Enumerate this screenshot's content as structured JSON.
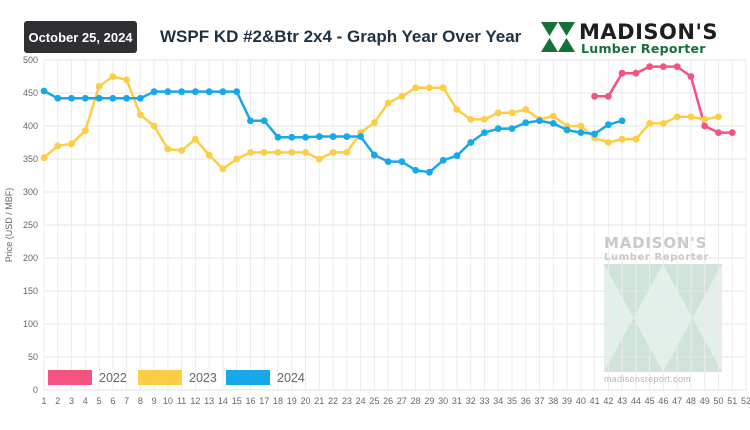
{
  "header": {
    "date_label": "October 25, 2024",
    "title": "WSPF KD #2&Btr 2x4 - Graph Year Over Year"
  },
  "logo": {
    "name": "MADISON'S",
    "sub": "Lumber Reporter",
    "icon": "madisons-logo-icon",
    "color": "#17703a"
  },
  "watermark": {
    "name": "MADISON'S",
    "sub": "Lumber Reporter",
    "url": "madisonsreport.com"
  },
  "chart_data": {
    "type": "line",
    "title": "WSPF KD #2&Btr 2x4 - Graph Year Over Year",
    "xlabel": "",
    "ylabel": "Price (USD / MBF)",
    "x": [
      1,
      2,
      3,
      4,
      5,
      6,
      7,
      8,
      9,
      10,
      11,
      12,
      13,
      14,
      15,
      16,
      17,
      18,
      19,
      20,
      21,
      22,
      23,
      24,
      25,
      26,
      27,
      28,
      29,
      30,
      31,
      32,
      33,
      34,
      35,
      36,
      37,
      38,
      39,
      40,
      41,
      42,
      43,
      44,
      45,
      46,
      47,
      48,
      49,
      50,
      51,
      52
    ],
    "xlim": [
      1,
      52
    ],
    "ylim": [
      0,
      500
    ],
    "yticks": [
      0,
      50,
      100,
      150,
      200,
      250,
      300,
      350,
      400,
      450,
      500
    ],
    "grid": true,
    "legend_position": "bottom-left",
    "series": [
      {
        "name": "2022",
        "color": "#f5537f",
        "points": [
          [
            41,
            445
          ],
          [
            42,
            445
          ],
          [
            43,
            480
          ],
          [
            44,
            480
          ],
          [
            45,
            490
          ],
          [
            46,
            490
          ],
          [
            47,
            490
          ],
          [
            48,
            475
          ],
          [
            49,
            400
          ],
          [
            50,
            390
          ],
          [
            51,
            390
          ]
        ]
      },
      {
        "name": "2023",
        "color": "#ffcd45",
        "points": [
          [
            1,
            352
          ],
          [
            2,
            370
          ],
          [
            3,
            373
          ],
          [
            4,
            393
          ],
          [
            5,
            460
          ],
          [
            6,
            475
          ],
          [
            7,
            470
          ],
          [
            8,
            417
          ],
          [
            9,
            400
          ],
          [
            10,
            365
          ],
          [
            11,
            363
          ],
          [
            12,
            380
          ],
          [
            13,
            356
          ],
          [
            14,
            335
          ],
          [
            15,
            350
          ],
          [
            16,
            360
          ],
          [
            17,
            360
          ],
          [
            18,
            360
          ],
          [
            19,
            360
          ],
          [
            20,
            360
          ],
          [
            21,
            350
          ],
          [
            22,
            360
          ],
          [
            23,
            360
          ],
          [
            24,
            390
          ],
          [
            25,
            405
          ],
          [
            26,
            435
          ],
          [
            27,
            445
          ],
          [
            28,
            458
          ],
          [
            29,
            458
          ],
          [
            30,
            458
          ],
          [
            31,
            425
          ],
          [
            32,
            410
          ],
          [
            33,
            410
          ],
          [
            34,
            420
          ],
          [
            35,
            420
          ],
          [
            36,
            425
          ],
          [
            37,
            410
          ],
          [
            38,
            415
          ],
          [
            39,
            400
          ],
          [
            40,
            400
          ],
          [
            41,
            382
          ],
          [
            42,
            375
          ],
          [
            43,
            380
          ],
          [
            44,
            380
          ],
          [
            45,
            404
          ],
          [
            46,
            404
          ],
          [
            47,
            414
          ],
          [
            48,
            414
          ],
          [
            49,
            410
          ],
          [
            50,
            414
          ]
        ]
      },
      {
        "name": "2024",
        "color": "#16a8e8",
        "points": [
          [
            1,
            453
          ],
          [
            2,
            442
          ],
          [
            3,
            442
          ],
          [
            4,
            442
          ],
          [
            5,
            442
          ],
          [
            6,
            442
          ],
          [
            7,
            442
          ],
          [
            8,
            442
          ],
          [
            9,
            452
          ],
          [
            10,
            452
          ],
          [
            11,
            452
          ],
          [
            12,
            452
          ],
          [
            13,
            452
          ],
          [
            14,
            452
          ],
          [
            15,
            452
          ],
          [
            16,
            408
          ],
          [
            17,
            408
          ],
          [
            18,
            383
          ],
          [
            19,
            383
          ],
          [
            20,
            383
          ],
          [
            21,
            384
          ],
          [
            22,
            384
          ],
          [
            23,
            384
          ],
          [
            24,
            384
          ],
          [
            25,
            356
          ],
          [
            26,
            346
          ],
          [
            27,
            346
          ],
          [
            28,
            333
          ],
          [
            29,
            330
          ],
          [
            30,
            348
          ],
          [
            31,
            355
          ],
          [
            32,
            375
          ],
          [
            33,
            390
          ],
          [
            34,
            396
          ],
          [
            35,
            396
          ],
          [
            36,
            405
          ],
          [
            37,
            408
          ],
          [
            38,
            404
          ],
          [
            39,
            394
          ],
          [
            40,
            390
          ],
          [
            41,
            388
          ],
          [
            42,
            402
          ],
          [
            43,
            408
          ]
        ]
      }
    ]
  }
}
